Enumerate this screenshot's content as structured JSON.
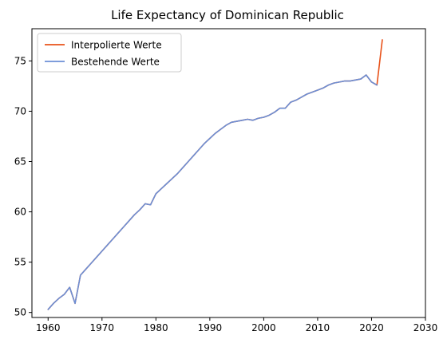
{
  "chart_data": {
    "type": "line",
    "title": "Life Expectancy of Dominican Republic",
    "xlabel": "",
    "ylabel": "",
    "xlim": [
      1957,
      2030
    ],
    "ylim": [
      49.5,
      78.2
    ],
    "xticks": [
      1960,
      1970,
      1980,
      1990,
      2000,
      2010,
      2020,
      2030
    ],
    "yticks": [
      50,
      55,
      60,
      65,
      70,
      75
    ],
    "grid": false,
    "legend_position": "top-left",
    "series": [
      {
        "name": "Interpolierte Werte",
        "color": "#e8521a",
        "x": [
          1960,
          1961,
          1962,
          1963,
          1964,
          1965,
          1966,
          1967,
          1968,
          1969,
          1970,
          1971,
          1972,
          1973,
          1974,
          1975,
          1976,
          1977,
          1978,
          1979,
          1980,
          1981,
          1982,
          1983,
          1984,
          1985,
          1986,
          1987,
          1988,
          1989,
          1990,
          1991,
          1992,
          1993,
          1994,
          1995,
          1996,
          1997,
          1998,
          1999,
          2000,
          2001,
          2002,
          2003,
          2004,
          2005,
          2006,
          2007,
          2008,
          2009,
          2010,
          2011,
          2012,
          2013,
          2014,
          2015,
          2016,
          2017,
          2018,
          2019,
          2020,
          2021,
          2022
        ],
        "y": [
          50.3,
          50.9,
          51.4,
          51.8,
          52.5,
          50.9,
          53.7,
          54.3,
          54.9,
          55.5,
          56.1,
          56.7,
          57.3,
          57.9,
          58.5,
          59.1,
          59.7,
          60.2,
          60.8,
          60.7,
          61.8,
          62.3,
          62.8,
          63.3,
          63.8,
          64.4,
          65.0,
          65.6,
          66.2,
          66.8,
          67.3,
          67.8,
          68.2,
          68.6,
          68.9,
          69.0,
          69.1,
          69.2,
          69.1,
          69.3,
          69.4,
          69.6,
          69.9,
          70.3,
          70.3,
          70.9,
          71.1,
          71.4,
          71.7,
          71.9,
          72.1,
          72.3,
          72.6,
          72.8,
          72.9,
          73.0,
          73.0,
          73.1,
          73.2,
          73.6,
          72.9,
          72.6,
          77.1
        ]
      },
      {
        "name": "Bestehende Werte",
        "color": "#6b8fd6",
        "x": [
          1960,
          1961,
          1962,
          1963,
          1964,
          1965,
          1966,
          1967,
          1968,
          1969,
          1970,
          1971,
          1972,
          1973,
          1974,
          1975,
          1976,
          1977,
          1978,
          1979,
          1980,
          1981,
          1982,
          1983,
          1984,
          1985,
          1986,
          1987,
          1988,
          1989,
          1990,
          1991,
          1992,
          1993,
          1994,
          1995,
          1996,
          1997,
          1998,
          1999,
          2000,
          2001,
          2002,
          2003,
          2004,
          2005,
          2006,
          2007,
          2008,
          2009,
          2010,
          2011,
          2012,
          2013,
          2014,
          2015,
          2016,
          2017,
          2018,
          2019,
          2020,
          2021
        ],
        "y": [
          50.3,
          50.9,
          51.4,
          51.8,
          52.5,
          50.9,
          53.7,
          54.3,
          54.9,
          55.5,
          56.1,
          56.7,
          57.3,
          57.9,
          58.5,
          59.1,
          59.7,
          60.2,
          60.8,
          60.7,
          61.8,
          62.3,
          62.8,
          63.3,
          63.8,
          64.4,
          65.0,
          65.6,
          66.2,
          66.8,
          67.3,
          67.8,
          68.2,
          68.6,
          68.9,
          69.0,
          69.1,
          69.2,
          69.1,
          69.3,
          69.4,
          69.6,
          69.9,
          70.3,
          70.3,
          70.9,
          71.1,
          71.4,
          71.7,
          71.9,
          72.1,
          72.3,
          72.6,
          72.8,
          72.9,
          73.0,
          73.0,
          73.1,
          73.2,
          73.6,
          72.9,
          72.6
        ]
      }
    ]
  }
}
